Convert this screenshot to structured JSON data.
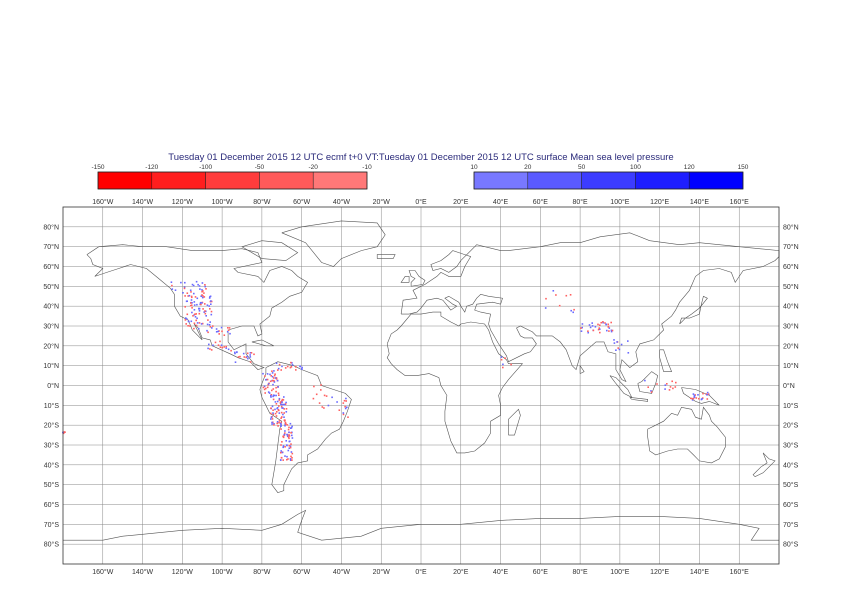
{
  "title": "Tuesday 01 December 2015 12 UTC ecmf t+0 VT:Tuesday 01 December 2015 12 UTC surface  Mean sea level pressure",
  "legend_negative": {
    "ticks": [
      "-150",
      "-120",
      "-100",
      "-50",
      "-20",
      "-10"
    ],
    "colors": [
      "#ff0000",
      "#ff1e1e",
      "#ff3c3c",
      "#ff5a5a",
      "#ff7878"
    ]
  },
  "legend_positive": {
    "ticks": [
      "10",
      "20",
      "50",
      "100",
      "120",
      "150"
    ],
    "colors": [
      "#7878ff",
      "#5a5aff",
      "#3c3cff",
      "#1e1eff",
      "#0000ff"
    ]
  },
  "longitude_labels": [
    "160°W",
    "140°W",
    "120°W",
    "100°W",
    "80°W",
    "60°W",
    "40°W",
    "20°W",
    "0°E",
    "20°E",
    "40°E",
    "60°E",
    "80°E",
    "100°E",
    "120°E",
    "140°E",
    "160°E"
  ],
  "latitude_labels": [
    "80°N",
    "70°N",
    "60°N",
    "50°N",
    "40°N",
    "30°N",
    "20°N",
    "10°N",
    "0°N",
    "10°S",
    "20°S",
    "30°S",
    "40°S",
    "50°S",
    "60°S",
    "70°S",
    "80°S"
  ],
  "map_data": {
    "projection": "cylindrical",
    "lon_range": [
      -180,
      180
    ],
    "lat_range": [
      -90,
      90
    ],
    "field": "mean sea level pressure difference",
    "colors": {
      "coastline": "#555555",
      "grid": "#888888",
      "negative": "#ff6060",
      "positive": "#6a6aff"
    },
    "clusters": [
      {
        "lon": -112,
        "lat": 38,
        "rlon": 7,
        "rlat": 9,
        "n": 90
      },
      {
        "lon": -118,
        "lat": 50,
        "rlon": 10,
        "rlat": 3,
        "n": 25
      },
      {
        "lon": -102,
        "lat": 24,
        "rlon": 6,
        "rlat": 6,
        "n": 30
      },
      {
        "lon": -90,
        "lat": 15,
        "rlon": 6,
        "rlat": 3,
        "n": 20
      },
      {
        "lon": -76,
        "lat": 2,
        "rlon": 4,
        "rlat": 6,
        "n": 45
      },
      {
        "lon": -72,
        "lat": -12,
        "rlon": 4,
        "rlat": 8,
        "n": 80
      },
      {
        "lon": -68,
        "lat": -28,
        "rlon": 3,
        "rlat": 10,
        "n": 70
      },
      {
        "lon": -66,
        "lat": 10,
        "rlon": 8,
        "rlat": 2,
        "n": 20
      },
      {
        "lon": -50,
        "lat": -5,
        "rlon": 6,
        "rlat": 6,
        "n": 12
      },
      {
        "lon": -40,
        "lat": -12,
        "rlon": 3,
        "rlat": 6,
        "n": 12
      },
      {
        "lon": 88,
        "lat": 30,
        "rlon": 8,
        "rlat": 3,
        "n": 35
      },
      {
        "lon": 70,
        "lat": 43,
        "rlon": 8,
        "rlat": 6,
        "n": 10
      },
      {
        "lon": 100,
        "lat": 20,
        "rlon": 4,
        "rlat": 4,
        "n": 10
      },
      {
        "lon": 120,
        "lat": 0,
        "rlon": 8,
        "rlat": 3,
        "n": 14
      },
      {
        "lon": 140,
        "lat": -5,
        "rlon": 5,
        "rlat": 2,
        "n": 22
      },
      {
        "lon": 42,
        "lat": 12,
        "rlon": 3,
        "rlat": 3,
        "n": 6
      },
      {
        "lon": -180,
        "lat": -23,
        "rlon": 1,
        "rlat": 1,
        "n": 4
      }
    ]
  }
}
